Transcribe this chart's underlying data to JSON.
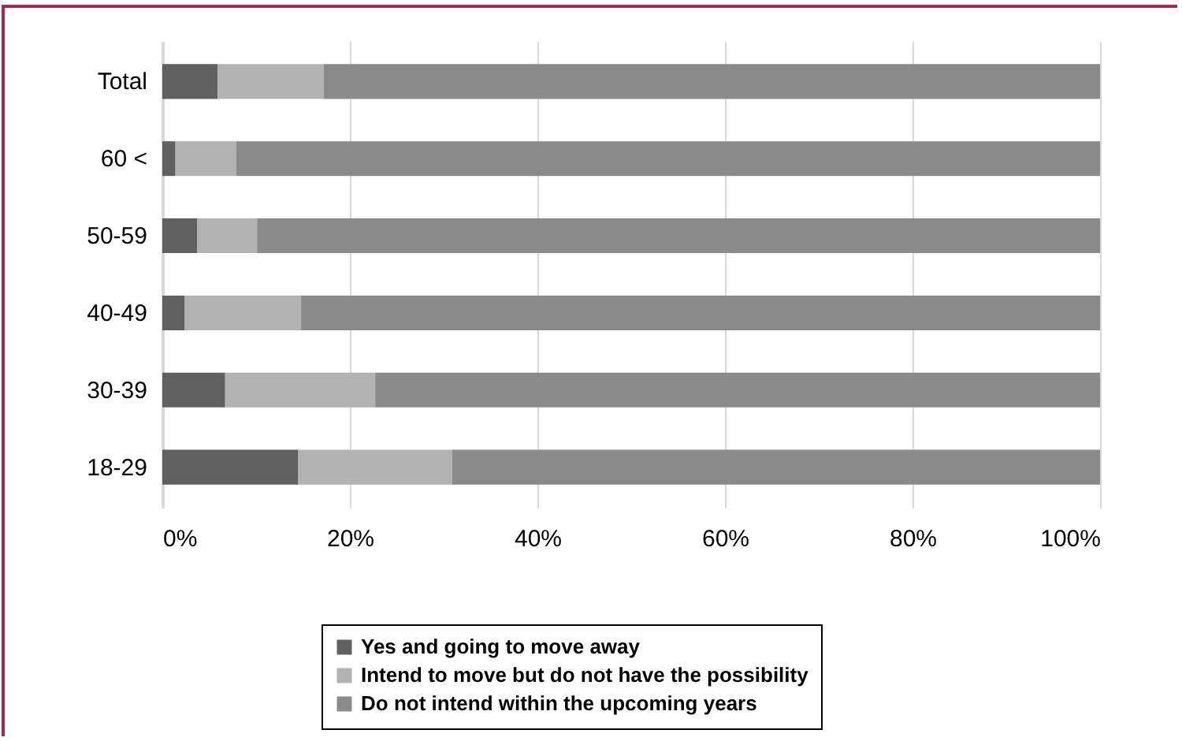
{
  "chart_data": {
    "type": "bar",
    "orientation": "horizontal",
    "stacked": true,
    "categories": [
      "Total",
      "60 <",
      "50-59",
      "40-49",
      "30-39",
      "18-29"
    ],
    "series": [
      {
        "name": "Yes and going to move away",
        "color": "#606060",
        "values": [
          5.9,
          1.4,
          3.7,
          2.4,
          6.7,
          14.5
        ]
      },
      {
        "name": "Intend to move but do not have the possibility",
        "color": "#b2b2b2",
        "values": [
          11.3,
          6.5,
          6.4,
          12.4,
          16.0,
          16.4
        ]
      },
      {
        "name": "Do not intend within the upcoming years",
        "color": "#8a8a8a",
        "values": [
          82.8,
          92.1,
          89.9,
          85.2,
          77.3,
          69.1
        ]
      }
    ],
    "xlim": [
      0,
      100
    ],
    "xticks": [
      {
        "value": 0,
        "label": "0%"
      },
      {
        "value": 20,
        "label": "20%"
      },
      {
        "value": 40,
        "label": "40%"
      },
      {
        "value": 60,
        "label": "60%"
      },
      {
        "value": 80,
        "label": "80%"
      },
      {
        "value": 100,
        "label": "100%"
      }
    ],
    "grid": "x",
    "legend": "bottom"
  }
}
